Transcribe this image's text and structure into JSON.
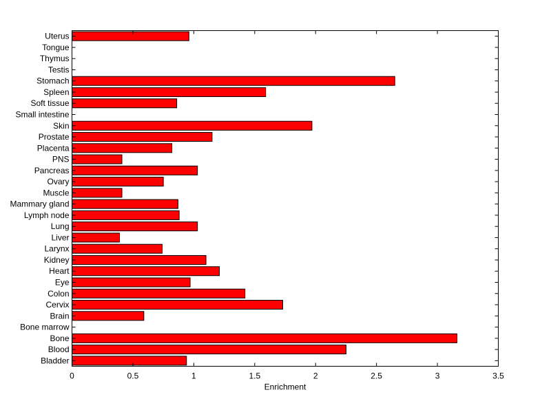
{
  "chart_data": {
    "type": "bar",
    "orientation": "horizontal",
    "title": "",
    "xlabel": "Enrichment",
    "ylabel": "",
    "xlim": [
      0,
      3.5
    ],
    "xticks": [
      0,
      0.5,
      1,
      1.5,
      2,
      2.5,
      3,
      3.5
    ],
    "xtick_labels": [
      "0",
      "0.5",
      "1",
      "1.5",
      "2",
      "2.5",
      "3",
      "3.5"
    ],
    "grid": false,
    "legend": "none",
    "bar_color": "#ff0000",
    "bar_edge_color": "#000000",
    "categories": [
      "Bladder",
      "Blood",
      "Bone",
      "Bone marrow",
      "Brain",
      "Cervix",
      "Colon",
      "Eye",
      "Heart",
      "Kidney",
      "Larynx",
      "Liver",
      "Lung",
      "Lymph node",
      "Mammary gland",
      "Muscle",
      "Ovary",
      "Pancreas",
      "PNS",
      "Placenta",
      "Prostate",
      "Skin",
      "Small intestine",
      "Soft tissue",
      "Spleen",
      "Stomach",
      "Testis",
      "Thymus",
      "Tongue",
      "Uterus"
    ],
    "values": [
      0.94,
      2.25,
      3.16,
      0,
      0.59,
      1.73,
      1.42,
      0.97,
      1.21,
      1.1,
      0.74,
      0.39,
      1.03,
      0.88,
      0.87,
      0.41,
      0.75,
      1.03,
      0.41,
      0.82,
      1.15,
      1.97,
      0,
      0.86,
      1.59,
      2.65,
      0,
      0,
      0,
      0.96
    ]
  }
}
